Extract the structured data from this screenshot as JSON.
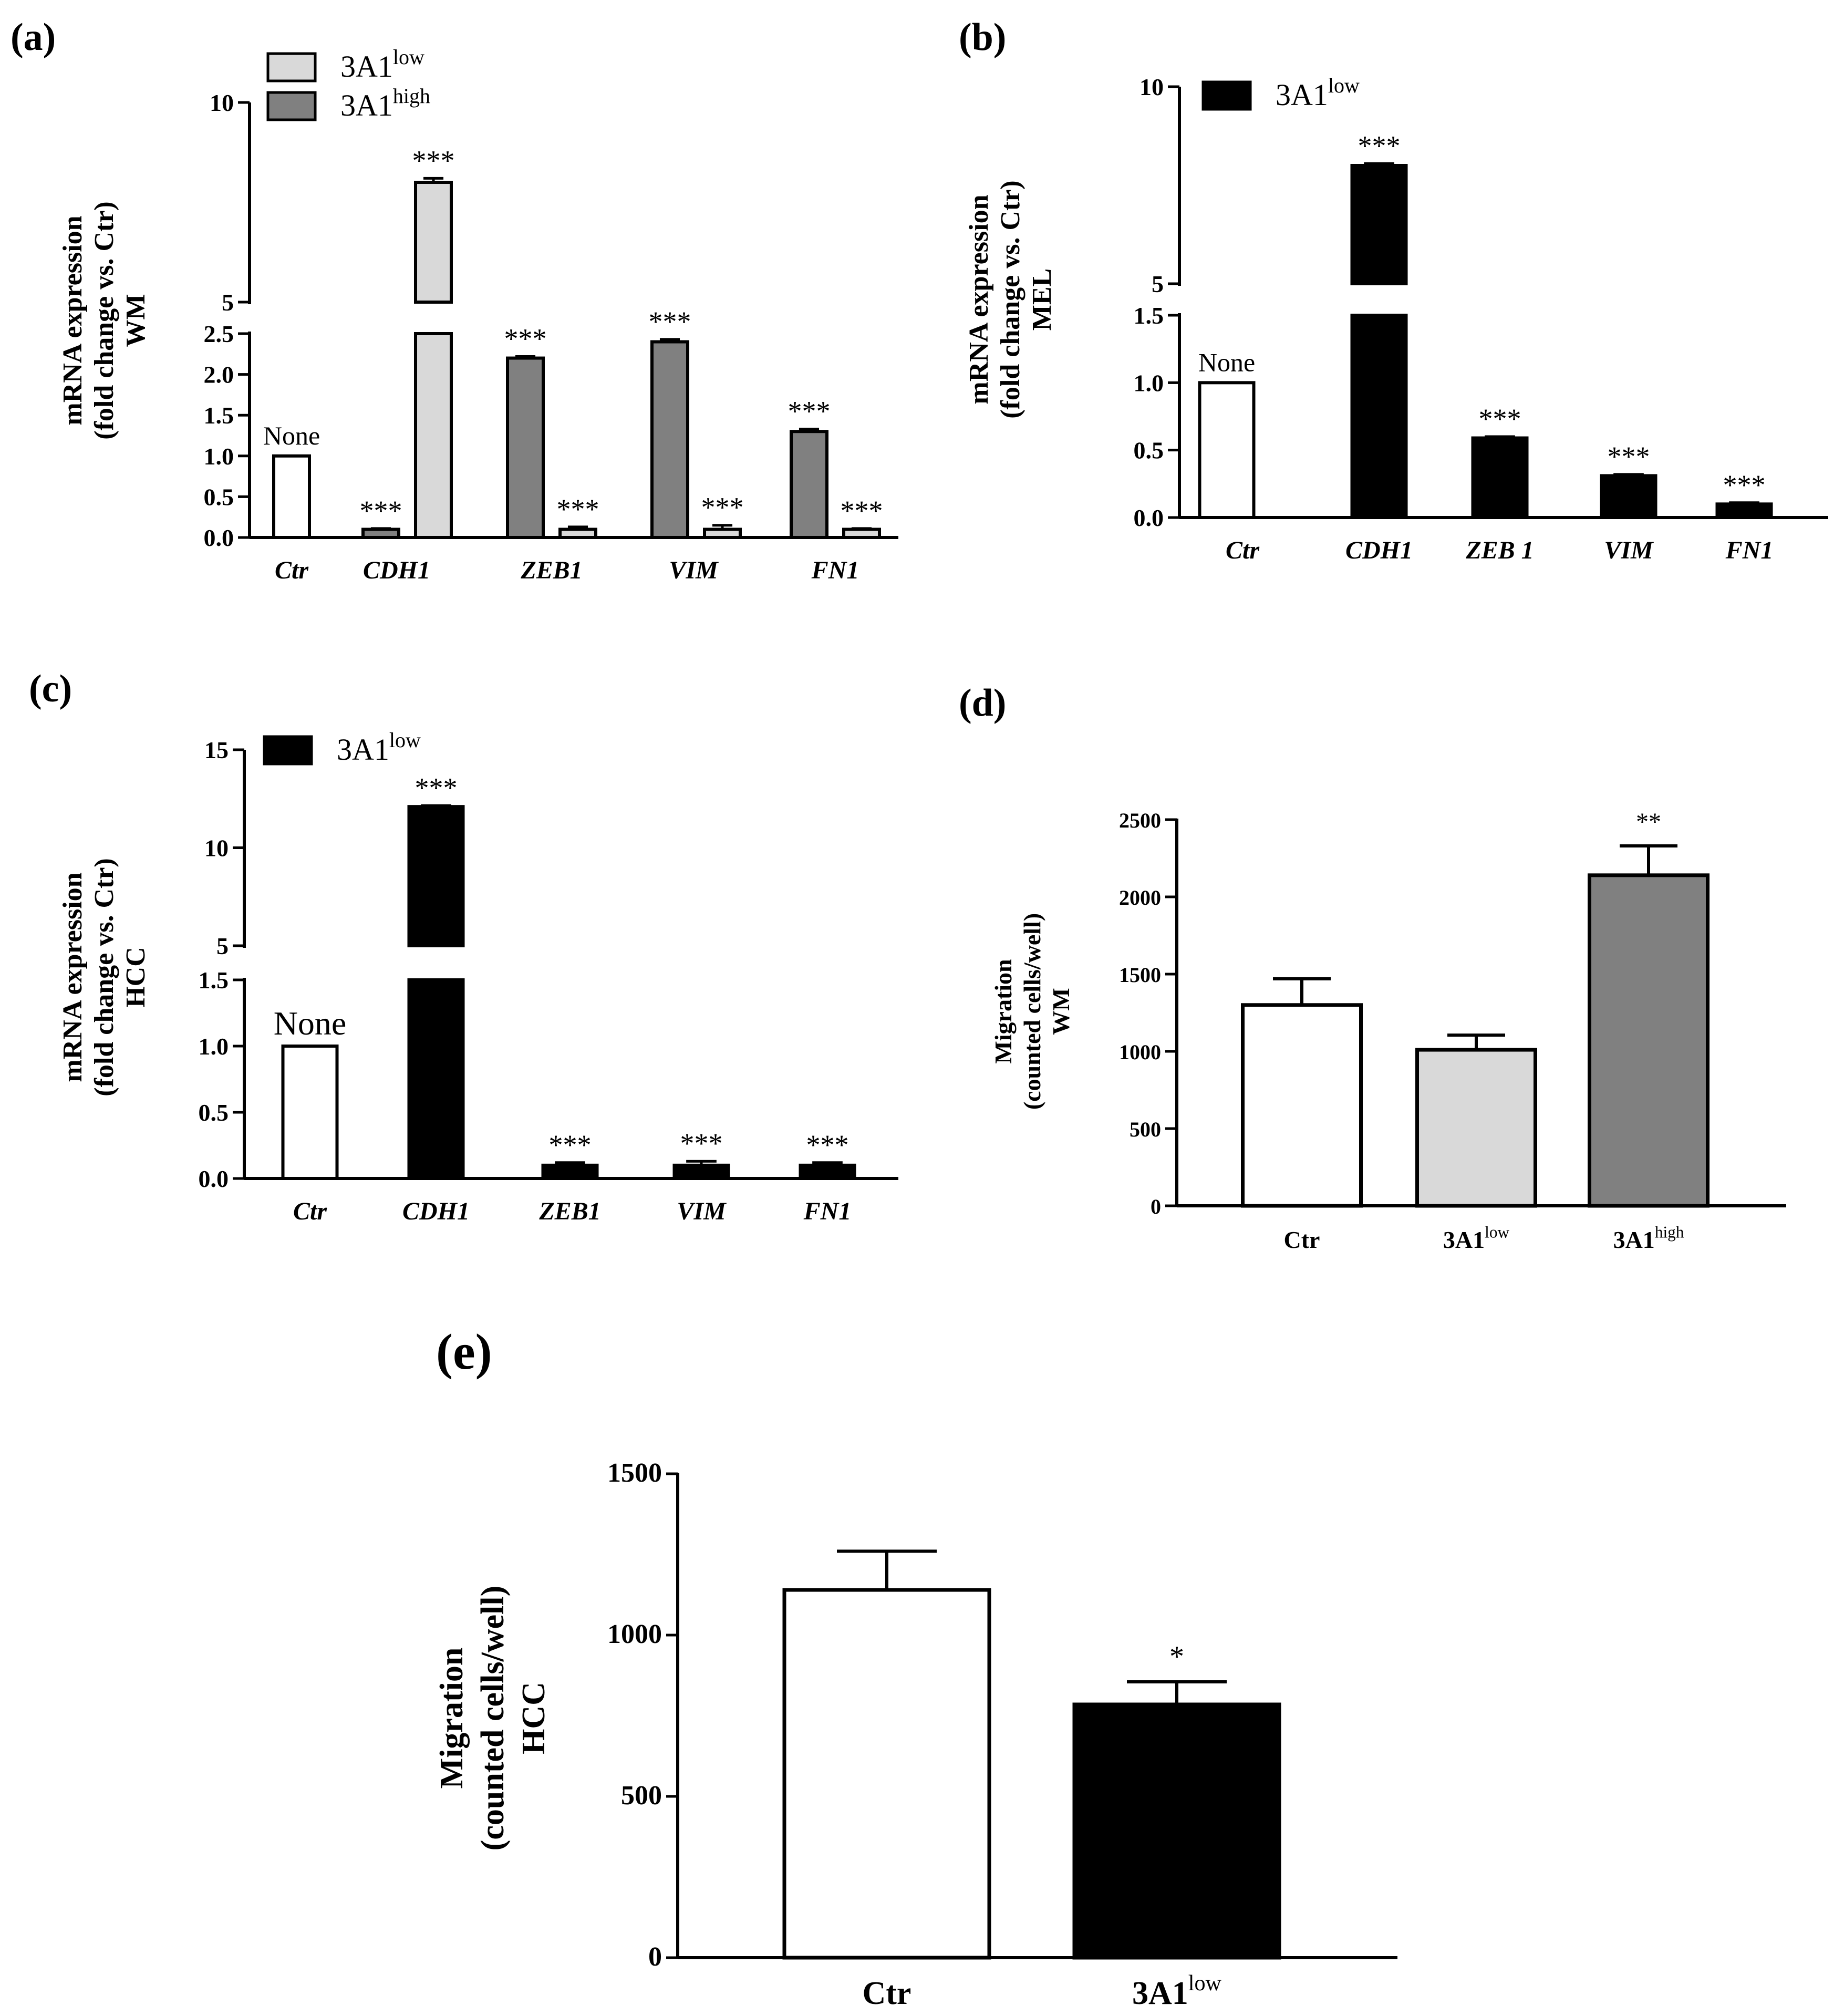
{
  "colors": {
    "control": "#ffffff",
    "low_light": "#d9d9d9",
    "high_gray": "#808080",
    "low_black": "#000000",
    "axis": "#000000"
  },
  "chart_data": [
    {
      "id": "a",
      "panel_label": "(a)",
      "type": "bar",
      "ylabel_lines": [
        "mRNA expression",
        "(fold change vs. Ctr)",
        "WM"
      ],
      "categories": [
        "Ctr",
        "CDH1",
        "ZEB1",
        "VIM",
        "FN1"
      ],
      "y_axis_break": {
        "lower": [
          0,
          2.5
        ],
        "upper": [
          5,
          10
        ]
      },
      "yticks_lower": [
        "0.0",
        "0.5",
        "1.0",
        "1.5",
        "2.0",
        "2.5"
      ],
      "yticks_upper": [
        "5",
        "10"
      ],
      "legend": [
        {
          "label": "3A1",
          "sup": "low",
          "color": "#d9d9d9"
        },
        {
          "label": "3A1",
          "sup": "high",
          "color": "#808080"
        }
      ],
      "bars": [
        {
          "category": "Ctr",
          "series": "None",
          "value": 1.0,
          "error": 0,
          "color": "#ffffff",
          "label": "None"
        },
        {
          "category": "CDH1",
          "series": "3A1high",
          "value": 0.1,
          "error": 0.01,
          "color": "#808080",
          "label": "***"
        },
        {
          "category": "CDH1",
          "series": "3A1low",
          "value": 8.0,
          "error": 0.1,
          "color": "#d9d9d9",
          "label": "***"
        },
        {
          "category": "ZEB1",
          "series": "3A1high",
          "value": 2.2,
          "error": 0.02,
          "color": "#808080",
          "label": "***"
        },
        {
          "category": "ZEB1",
          "series": "3A1low",
          "value": 0.1,
          "error": 0.03,
          "color": "#d9d9d9",
          "label": "***"
        },
        {
          "category": "VIM",
          "series": "3A1high",
          "value": 2.4,
          "error": 0.03,
          "color": "#808080",
          "label": "***"
        },
        {
          "category": "VIM",
          "series": "3A1low",
          "value": 0.1,
          "error": 0.05,
          "color": "#d9d9d9",
          "label": "***"
        },
        {
          "category": "FN1",
          "series": "3A1high",
          "value": 1.3,
          "error": 0.03,
          "color": "#808080",
          "label": "***"
        },
        {
          "category": "FN1",
          "series": "3A1low",
          "value": 0.1,
          "error": 0.01,
          "color": "#d9d9d9",
          "label": "***"
        }
      ]
    },
    {
      "id": "b",
      "panel_label": "(b)",
      "type": "bar",
      "ylabel_lines": [
        "mRNA expression",
        "(fold change vs. Ctr)",
        "MEL"
      ],
      "categories": [
        "Ctr",
        "CDH1",
        "ZEB 1",
        "VIM",
        "FN1"
      ],
      "y_axis_break": {
        "lower": [
          0,
          1.5
        ],
        "upper": [
          5,
          10
        ]
      },
      "yticks_lower": [
        "0.0",
        "0.5",
        "1.0",
        "1.5"
      ],
      "yticks_upper": [
        "5",
        "10"
      ],
      "legend": [
        {
          "label": "3A1",
          "sup": "low",
          "color": "#000000"
        }
      ],
      "bars": [
        {
          "category": "Ctr",
          "series": "None",
          "value": 1.0,
          "error": 0,
          "color": "#ffffff",
          "label": "None"
        },
        {
          "category": "CDH1",
          "series": "3A1low",
          "value": 8.0,
          "error": 0.05,
          "color": "#000000",
          "label": "***"
        },
        {
          "category": "ZEB 1",
          "series": "3A1low",
          "value": 0.59,
          "error": 0.01,
          "color": "#000000",
          "label": "***"
        },
        {
          "category": "VIM",
          "series": "3A1low",
          "value": 0.31,
          "error": 0.01,
          "color": "#000000",
          "label": "***"
        },
        {
          "category": "FN1",
          "series": "3A1low",
          "value": 0.1,
          "error": 0.01,
          "color": "#000000",
          "label": "***"
        }
      ]
    },
    {
      "id": "c",
      "panel_label": "(c)",
      "type": "bar",
      "ylabel_lines": [
        "mRNA expression",
        "(fold change vs. Ctr)",
        "HCC"
      ],
      "categories": [
        "Ctr",
        "CDH1",
        "ZEB1",
        "VIM",
        "FN1"
      ],
      "y_axis_break": {
        "lower": [
          0,
          1.5
        ],
        "upper": [
          5,
          15
        ]
      },
      "yticks_lower": [
        "0.0",
        "0.5",
        "1.0",
        "1.5"
      ],
      "yticks_upper": [
        "5",
        "10",
        "15"
      ],
      "legend": [
        {
          "label": "3A1",
          "sup": "low",
          "color": "#000000"
        }
      ],
      "bars": [
        {
          "category": "Ctr",
          "series": "None",
          "value": 1.0,
          "error": 0,
          "color": "#ffffff",
          "label": "None"
        },
        {
          "category": "CDH1",
          "series": "3A1low",
          "value": 12.1,
          "error": 0.05,
          "color": "#000000",
          "label": "***"
        },
        {
          "category": "ZEB1",
          "series": "3A1low",
          "value": 0.1,
          "error": 0.02,
          "color": "#000000",
          "label": "***"
        },
        {
          "category": "VIM",
          "series": "3A1low",
          "value": 0.1,
          "error": 0.03,
          "color": "#000000",
          "label": "***"
        },
        {
          "category": "FN1",
          "series": "3A1low",
          "value": 0.1,
          "error": 0.02,
          "color": "#000000",
          "label": "***"
        }
      ]
    },
    {
      "id": "d",
      "panel_label": "(d)",
      "type": "bar",
      "ylabel_lines": [
        "Migration",
        "(counted cells/well)",
        "WM"
      ],
      "categories": [
        {
          "label": "Ctr",
          "sup": ""
        },
        {
          "label": "3A1",
          "sup": "low"
        },
        {
          "label": "3A1",
          "sup": "high"
        }
      ],
      "ylim": [
        0,
        2500
      ],
      "yticks": [
        "0",
        "500",
        "1000",
        "1500",
        "2000",
        "2500"
      ],
      "bars": [
        {
          "value": 1300,
          "error": 170,
          "color": "#ffffff",
          "label": ""
        },
        {
          "value": 1010,
          "error": 95,
          "color": "#d9d9d9",
          "label": ""
        },
        {
          "value": 2140,
          "error": 190,
          "color": "#808080",
          "label": "**"
        }
      ]
    },
    {
      "id": "e",
      "panel_label": "(e)",
      "type": "bar",
      "ylabel_lines": [
        "Migration",
        "(counted cells/well)",
        "HCC"
      ],
      "categories": [
        {
          "label": "Ctr",
          "sup": ""
        },
        {
          "label": "3A1",
          "sup": "low"
        }
      ],
      "ylim": [
        0,
        1500
      ],
      "yticks": [
        "0",
        "500",
        "1000",
        "1500"
      ],
      "bars": [
        {
          "value": 1140,
          "error": 120,
          "color": "#ffffff",
          "label": ""
        },
        {
          "value": 785,
          "error": 70,
          "color": "#000000",
          "label": "*"
        }
      ]
    }
  ]
}
